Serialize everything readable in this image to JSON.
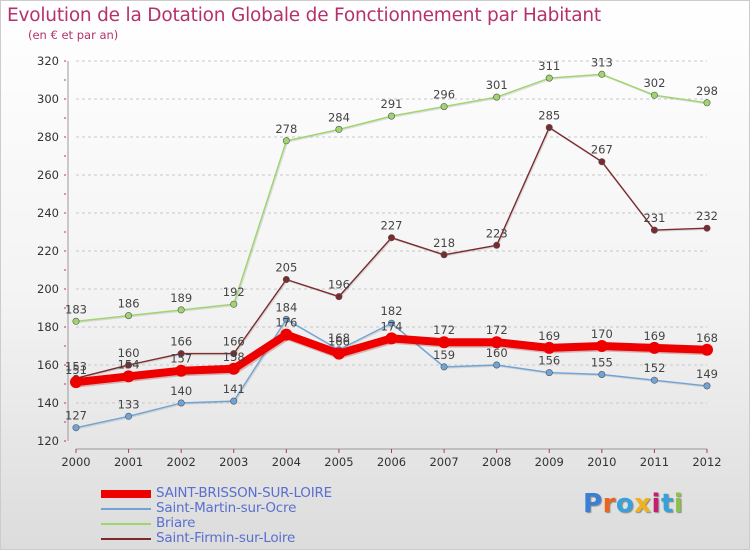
{
  "header": {
    "title": "Evolution de la Dotation Globale de Fonctionnement par Habitant",
    "subtitle": "(en € et par an)"
  },
  "logo": {
    "text": "Proxiti",
    "letter_colors": [
      "#3b7fd4",
      "#e8651e",
      "#3aa0d8",
      "#f0b21c",
      "#c21f6e",
      "#3aa0d8",
      "#8bc34a"
    ]
  },
  "chart_data": {
    "type": "line",
    "title": "Evolution de la Dotation Globale de Fonctionnement par Habitant",
    "subtitle": "(en € et par an)",
    "xlabel": "",
    "ylabel": "",
    "x": [
      "2000",
      "2001",
      "2002",
      "2003",
      "2004",
      "2005",
      "2006",
      "2007",
      "2008",
      "2009",
      "2010",
      "2011",
      "2012"
    ],
    "ylim": [
      120,
      320
    ],
    "yticks": [
      120,
      140,
      160,
      180,
      200,
      220,
      240,
      260,
      280,
      300,
      320
    ],
    "grid": "horizontal dashed",
    "legend_position": "bottom-left",
    "series": [
      {
        "name": "SAINT-BRISSON-SUR-LOIRE",
        "color": "#ee0000",
        "values": [
          151,
          154,
          157,
          158,
          176,
          166,
          174,
          172,
          172,
          169,
          170,
          169,
          168
        ],
        "labels": [
          "151",
          "154",
          "157",
          "158",
          "176",
          "166",
          "174",
          "172",
          "172",
          "169",
          "170",
          "169",
          "168"
        ]
      },
      {
        "name": "Saint-Martin-sur-Ocre",
        "color": "#6fa4d6",
        "values": [
          127,
          133,
          140,
          141,
          184,
          168,
          182,
          159,
          160,
          156,
          155,
          152,
          149
        ],
        "labels": [
          "127",
          "133",
          "140",
          "141",
          "184",
          "168",
          "182",
          "159",
          "160",
          "156",
          "155",
          "152",
          "149"
        ]
      },
      {
        "name": "Briare",
        "color": "#9ed56c",
        "values": [
          183,
          186,
          189,
          192,
          278,
          284,
          291,
          296,
          301,
          311,
          313,
          302,
          298
        ],
        "labels": [
          "183",
          "186",
          "189",
          "192",
          "278",
          "284",
          "291",
          "296",
          "301",
          "311",
          "313",
          "302",
          "298"
        ]
      },
      {
        "name": "Saint-Firmin-sur-Loire",
        "color": "#7b2a2e",
        "values": [
          153,
          160,
          166,
          166,
          205,
          196,
          227,
          218,
          223,
          285,
          267,
          231,
          232
        ],
        "labels": [
          "153",
          "160",
          "166",
          "166",
          "205",
          "196",
          "227",
          "218",
          "223",
          "285",
          "267",
          "231",
          "232"
        ]
      }
    ]
  }
}
